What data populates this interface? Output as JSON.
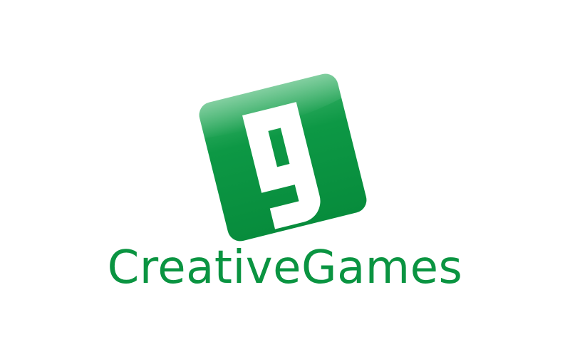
{
  "brand": {
    "wordmark": "CreativeGames",
    "mark_letter": "g",
    "colors": {
      "primary_green": "#0a9441",
      "highlight_green": "#4cbf7a",
      "mark_letter": "#ffffff",
      "background": "#ffffff"
    },
    "icon": "rotated-rounded-square-g-icon"
  }
}
